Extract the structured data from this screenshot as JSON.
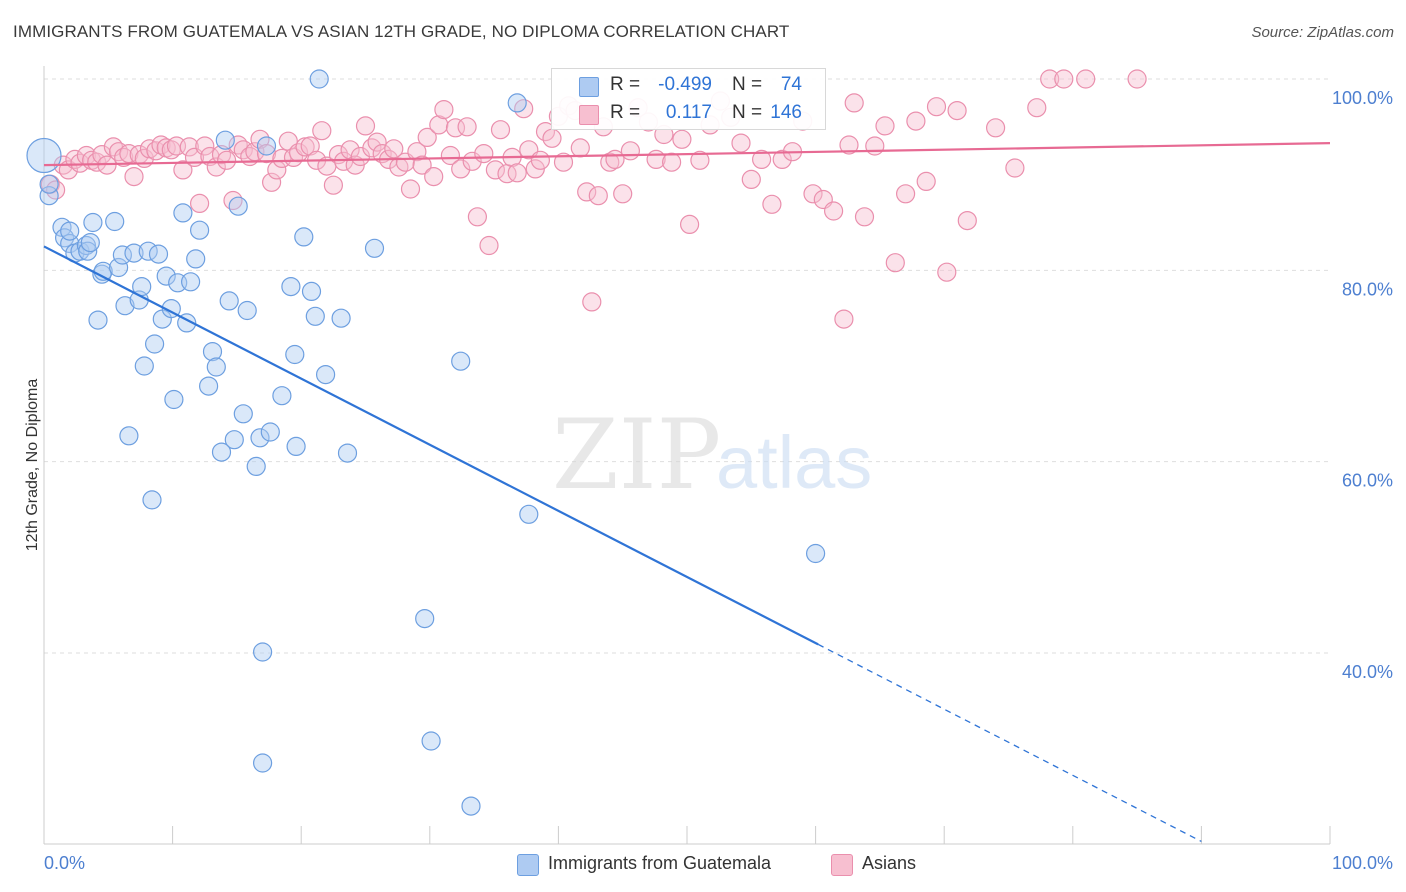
{
  "title": "IMMIGRANTS FROM GUATEMALA VS ASIAN 12TH GRADE, NO DIPLOMA CORRELATION CHART",
  "source": "Source: ZipAtlas.com",
  "watermark": {
    "zip": "ZIP",
    "atlas": "atlas"
  },
  "legend": {
    "rows": [
      {
        "r_label": "R =",
        "r_value": "-0.499",
        "n_label": "N =",
        "n_value": "74"
      },
      {
        "r_label": "R =",
        "r_value": "0.117",
        "n_label": "N =",
        "n_value": "146"
      }
    ]
  },
  "bottom_legend": [
    "Immigrants from Guatemala",
    "Asians"
  ],
  "colors": {
    "blue_fill": "#aecbf2",
    "blue_stroke": "#6d9fe0",
    "blue_line": "#2f74d6",
    "pink_fill": "#f7bfd0",
    "pink_stroke": "#ea8fad",
    "pink_line": "#e76a93",
    "axis_label": "#4d7fd0"
  },
  "chart_data": {
    "type": "scatter",
    "title": "IMMIGRANTS FROM GUATEMALA VS ASIAN 12TH GRADE, NO DIPLOMA CORRELATION CHART",
    "xlabel": "",
    "ylabel": "12th Grade, No Diploma",
    "xlim": [
      0,
      100
    ],
    "ylim": [
      19,
      102
    ],
    "x_tick_labels": [
      "0.0%",
      "100.0%"
    ],
    "y_ticks": [
      40,
      60,
      80,
      100
    ],
    "y_tick_labels": [
      "40.0%",
      "60.0%",
      "80.0%",
      "100.0%"
    ],
    "grid": "horizontal dashed",
    "series": [
      {
        "name": "Immigrants from Guatemala",
        "points": [
          [
            0.0,
            92.0
          ],
          [
            0.4,
            87.8
          ],
          [
            0.4,
            89.0
          ],
          [
            1.4,
            84.5
          ],
          [
            1.6,
            83.4
          ],
          [
            2.0,
            82.8
          ],
          [
            2.0,
            84.1
          ],
          [
            2.4,
            81.8
          ],
          [
            2.8,
            82.0
          ],
          [
            3.3,
            82.6
          ],
          [
            3.4,
            82.0
          ],
          [
            3.6,
            82.9
          ],
          [
            3.8,
            85.0
          ],
          [
            4.2,
            74.8
          ],
          [
            4.5,
            79.6
          ],
          [
            4.6,
            79.9
          ],
          [
            5.5,
            85.1
          ],
          [
            5.8,
            80.3
          ],
          [
            6.1,
            81.6
          ],
          [
            6.3,
            76.3
          ],
          [
            6.6,
            62.7
          ],
          [
            7.0,
            81.8
          ],
          [
            7.4,
            76.9
          ],
          [
            7.6,
            78.3
          ],
          [
            7.8,
            70.0
          ],
          [
            8.1,
            82.0
          ],
          [
            8.4,
            56.0
          ],
          [
            8.6,
            72.3
          ],
          [
            8.9,
            81.7
          ],
          [
            9.2,
            74.9
          ],
          [
            9.5,
            79.4
          ],
          [
            9.9,
            76.0
          ],
          [
            10.1,
            66.5
          ],
          [
            10.4,
            78.7
          ],
          [
            10.8,
            86.0
          ],
          [
            11.1,
            74.5
          ],
          [
            11.4,
            78.8
          ],
          [
            11.8,
            81.2
          ],
          [
            12.1,
            84.2
          ],
          [
            12.8,
            67.9
          ],
          [
            13.1,
            71.5
          ],
          [
            13.4,
            69.9
          ],
          [
            13.8,
            61.0
          ],
          [
            14.1,
            93.6
          ],
          [
            14.4,
            76.8
          ],
          [
            14.8,
            62.3
          ],
          [
            15.1,
            86.7
          ],
          [
            15.5,
            65.0
          ],
          [
            15.8,
            75.8
          ],
          [
            16.5,
            59.5
          ],
          [
            16.8,
            62.5
          ],
          [
            17.0,
            40.1
          ],
          [
            17.0,
            28.5
          ],
          [
            17.6,
            63.1
          ],
          [
            18.5,
            66.9
          ],
          [
            19.2,
            78.3
          ],
          [
            19.5,
            71.2
          ],
          [
            19.6,
            61.6
          ],
          [
            20.2,
            83.5
          ],
          [
            20.8,
            77.8
          ],
          [
            21.1,
            75.2
          ],
          [
            21.4,
            100.0
          ],
          [
            21.9,
            69.1
          ],
          [
            23.1,
            75.0
          ],
          [
            23.6,
            60.9
          ],
          [
            25.7,
            82.3
          ],
          [
            29.6,
            43.6
          ],
          [
            30.1,
            30.8
          ],
          [
            32.4,
            70.5
          ],
          [
            33.2,
            24.0
          ],
          [
            36.8,
            97.5
          ],
          [
            37.7,
            54.5
          ],
          [
            60.0,
            50.4
          ],
          [
            17.3,
            93.0
          ]
        ]
      },
      {
        "name": "Asians",
        "points": [
          [
            0.5,
            89.0
          ],
          [
            0.9,
            88.4
          ],
          [
            1.5,
            91.0
          ],
          [
            1.9,
            90.5
          ],
          [
            2.4,
            91.6
          ],
          [
            2.8,
            91.2
          ],
          [
            3.3,
            92.0
          ],
          [
            3.7,
            91.5
          ],
          [
            4.1,
            91.3
          ],
          [
            4.5,
            92.1
          ],
          [
            4.9,
            91.0
          ],
          [
            5.4,
            92.9
          ],
          [
            5.8,
            92.4
          ],
          [
            6.2,
            91.8
          ],
          [
            6.6,
            92.2
          ],
          [
            7.0,
            89.8
          ],
          [
            7.4,
            92.1
          ],
          [
            7.8,
            91.7
          ],
          [
            8.2,
            92.7
          ],
          [
            8.7,
            92.5
          ],
          [
            9.1,
            93.1
          ],
          [
            9.5,
            92.8
          ],
          [
            9.9,
            92.6
          ],
          [
            10.3,
            93.0
          ],
          [
            10.8,
            90.5
          ],
          [
            11.3,
            92.9
          ],
          [
            11.7,
            91.8
          ],
          [
            12.1,
            87.0
          ],
          [
            12.5,
            93.0
          ],
          [
            12.9,
            91.9
          ],
          [
            13.4,
            90.8
          ],
          [
            13.8,
            92.1
          ],
          [
            14.2,
            91.5
          ],
          [
            14.7,
            87.3
          ],
          [
            15.1,
            93.1
          ],
          [
            15.5,
            92.6
          ],
          [
            16.0,
            91.9
          ],
          [
            16.4,
            92.4
          ],
          [
            16.8,
            93.7
          ],
          [
            17.3,
            92.2
          ],
          [
            17.7,
            89.2
          ],
          [
            18.1,
            90.5
          ],
          [
            18.5,
            91.7
          ],
          [
            19.0,
            93.5
          ],
          [
            19.4,
            91.8
          ],
          [
            19.8,
            92.3
          ],
          [
            20.3,
            92.9
          ],
          [
            20.7,
            93.0
          ],
          [
            21.2,
            91.5
          ],
          [
            21.6,
            94.6
          ],
          [
            22.0,
            90.9
          ],
          [
            22.5,
            88.9
          ],
          [
            22.9,
            92.1
          ],
          [
            23.3,
            91.4
          ],
          [
            23.8,
            92.6
          ],
          [
            24.2,
            91.0
          ],
          [
            24.6,
            91.9
          ],
          [
            25.0,
            95.1
          ],
          [
            25.5,
            92.8
          ],
          [
            25.9,
            93.4
          ],
          [
            26.3,
            92.2
          ],
          [
            26.8,
            91.6
          ],
          [
            27.2,
            92.7
          ],
          [
            27.6,
            90.8
          ],
          [
            28.1,
            91.3
          ],
          [
            28.5,
            88.5
          ],
          [
            29.0,
            92.4
          ],
          [
            29.4,
            91.0
          ],
          [
            29.8,
            93.9
          ],
          [
            30.3,
            89.8
          ],
          [
            30.7,
            95.2
          ],
          [
            31.1,
            96.8
          ],
          [
            31.6,
            92.0
          ],
          [
            32.0,
            94.9
          ],
          [
            32.4,
            90.6
          ],
          [
            32.9,
            95.0
          ],
          [
            33.3,
            91.4
          ],
          [
            33.7,
            85.6
          ],
          [
            34.2,
            92.2
          ],
          [
            34.6,
            82.6
          ],
          [
            35.1,
            90.5
          ],
          [
            35.5,
            94.7
          ],
          [
            36.0,
            90.1
          ],
          [
            36.4,
            91.8
          ],
          [
            36.8,
            90.2
          ],
          [
            37.3,
            96.9
          ],
          [
            37.7,
            92.6
          ],
          [
            38.2,
            90.6
          ],
          [
            38.6,
            91.5
          ],
          [
            39.0,
            94.5
          ],
          [
            39.5,
            93.8
          ],
          [
            40.0,
            96.1
          ],
          [
            40.4,
            91.3
          ],
          [
            40.8,
            97.2
          ],
          [
            41.3,
            96.7
          ],
          [
            41.7,
            92.8
          ],
          [
            42.2,
            88.2
          ],
          [
            42.6,
            76.7
          ],
          [
            43.1,
            87.8
          ],
          [
            43.5,
            95.0
          ],
          [
            44.0,
            91.3
          ],
          [
            44.4,
            91.6
          ],
          [
            45.0,
            88.0
          ],
          [
            45.6,
            92.5
          ],
          [
            46.2,
            97.0
          ],
          [
            47.0,
            95.5
          ],
          [
            47.6,
            91.6
          ],
          [
            48.2,
            94.2
          ],
          [
            48.8,
            91.3
          ],
          [
            49.6,
            93.7
          ],
          [
            50.2,
            84.8
          ],
          [
            51.0,
            91.5
          ],
          [
            51.8,
            95.2
          ],
          [
            52.6,
            97.7
          ],
          [
            53.4,
            96.0
          ],
          [
            54.2,
            93.3
          ],
          [
            55.0,
            89.5
          ],
          [
            55.8,
            91.6
          ],
          [
            56.6,
            86.9
          ],
          [
            57.4,
            91.6
          ],
          [
            58.2,
            92.4
          ],
          [
            59.0,
            95.6
          ],
          [
            59.8,
            88.0
          ],
          [
            60.6,
            87.4
          ],
          [
            61.4,
            86.2
          ],
          [
            62.2,
            74.9
          ],
          [
            63.0,
            97.5
          ],
          [
            63.8,
            85.6
          ],
          [
            64.6,
            93.0
          ],
          [
            65.4,
            95.1
          ],
          [
            66.2,
            80.8
          ],
          [
            67.0,
            88.0
          ],
          [
            67.8,
            95.6
          ],
          [
            68.6,
            89.3
          ],
          [
            69.4,
            97.1
          ],
          [
            70.2,
            79.8
          ],
          [
            71.0,
            96.7
          ],
          [
            71.8,
            85.2
          ],
          [
            74.0,
            94.9
          ],
          [
            75.5,
            90.7
          ],
          [
            77.2,
            97.0
          ],
          [
            78.2,
            100.0
          ],
          [
            79.3,
            100.0
          ],
          [
            81.0,
            100.0
          ],
          [
            85.0,
            100.0
          ],
          [
            62.6,
            93.1
          ]
        ]
      }
    ],
    "trend_lines": [
      {
        "series": "Immigrants from Guatemala",
        "solid": [
          [
            0,
            82.5
          ],
          [
            60.2,
            40.9
          ]
        ],
        "dashed": [
          [
            60.2,
            40.9
          ],
          [
            90.0,
            20.3
          ]
        ]
      },
      {
        "series": "Asians",
        "solid": [
          [
            0,
            91.0
          ],
          [
            100,
            93.3
          ]
        ]
      }
    ]
  }
}
